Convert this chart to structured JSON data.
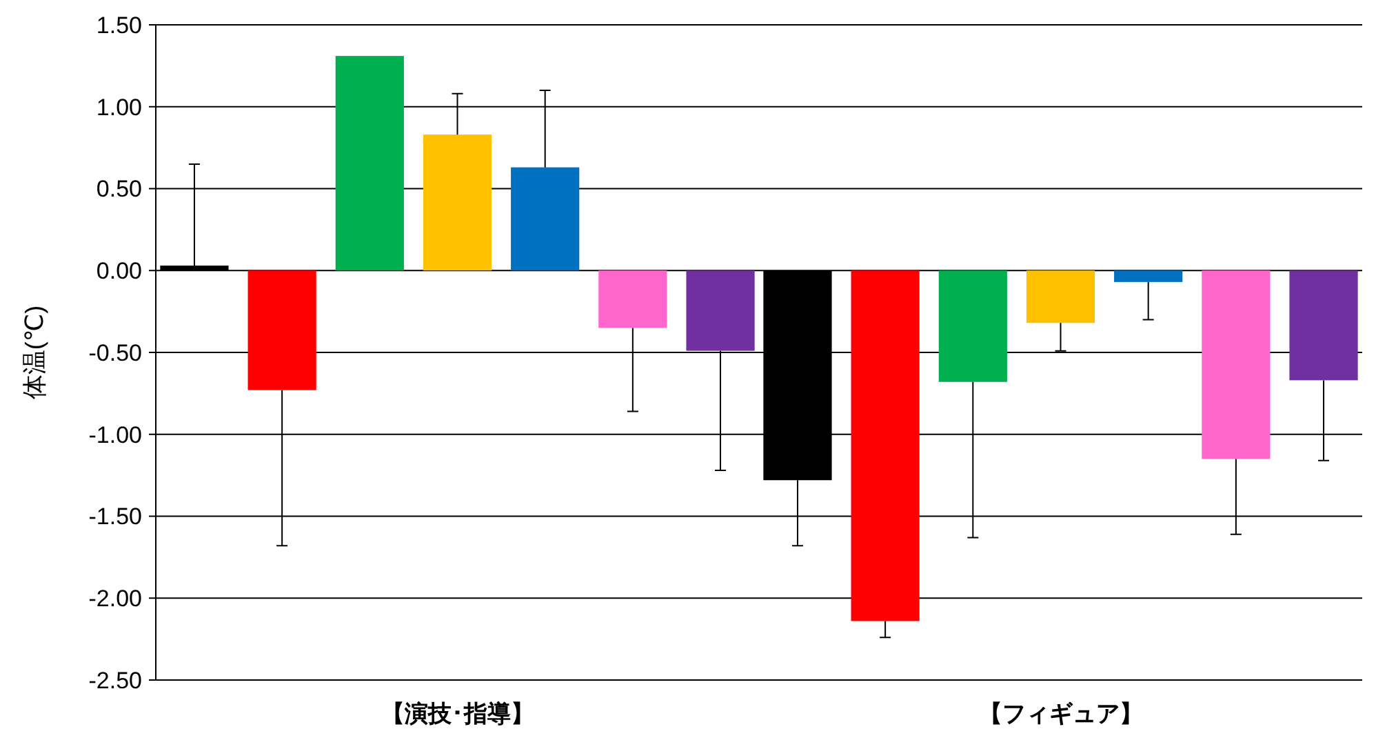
{
  "chart_data": {
    "type": "bar",
    "ylabel": "体温(℃)",
    "categories": [
      "【演技･指導】",
      "【フィギュア】"
    ],
    "ylim": [
      -2.5,
      1.5
    ],
    "yticks": [
      {
        "value": -2.5,
        "label": "-2.50"
      },
      {
        "value": -2,
        "label": "-2.00"
      },
      {
        "value": -1.5,
        "label": "-1.50"
      },
      {
        "value": -1,
        "label": "-1.00"
      },
      {
        "value": -0.5,
        "label": "-0.50"
      },
      {
        "value": 0,
        "label": "0.00"
      },
      {
        "value": 0.5,
        "label": "0.50"
      },
      {
        "value": 1,
        "label": "1.00"
      },
      {
        "value": 1.5,
        "label": "1.50"
      }
    ],
    "grid": "y",
    "series": [
      {
        "color": "#000000",
        "values": [
          0.03,
          -1.28
        ],
        "errors": [
          [
            0.03,
            0.65
          ],
          [
            -1.68,
            -1.28
          ]
        ]
      },
      {
        "color": "#ff0000",
        "values": [
          -0.73,
          -2.14
        ],
        "errors": [
          [
            -1.68,
            -0.73
          ],
          [
            -2.24,
            -2.14
          ]
        ]
      },
      {
        "color": "#00b050",
        "values": [
          1.31,
          -0.68
        ],
        "errors": [
          null,
          [
            -1.63,
            -0.68
          ]
        ]
      },
      {
        "color": "#ffc000",
        "values": [
          0.83,
          -0.32
        ],
        "errors": [
          [
            0.83,
            1.08
          ],
          [
            -0.49,
            -0.32
          ]
        ]
      },
      {
        "color": "#0070c0",
        "values": [
          0.63,
          -0.07
        ],
        "errors": [
          [
            0.63,
            1.1
          ],
          [
            -0.3,
            -0.07
          ]
        ]
      },
      {
        "color": "#ff66cc",
        "values": [
          -0.35,
          -1.15
        ],
        "errors": [
          [
            -0.86,
            -0.35
          ],
          [
            -1.61,
            -1.15
          ]
        ]
      },
      {
        "color": "#7030a0",
        "values": [
          -0.49,
          -0.67
        ],
        "errors": [
          [
            -1.22,
            -0.49
          ],
          [
            -1.16,
            -0.67
          ]
        ]
      }
    ]
  }
}
